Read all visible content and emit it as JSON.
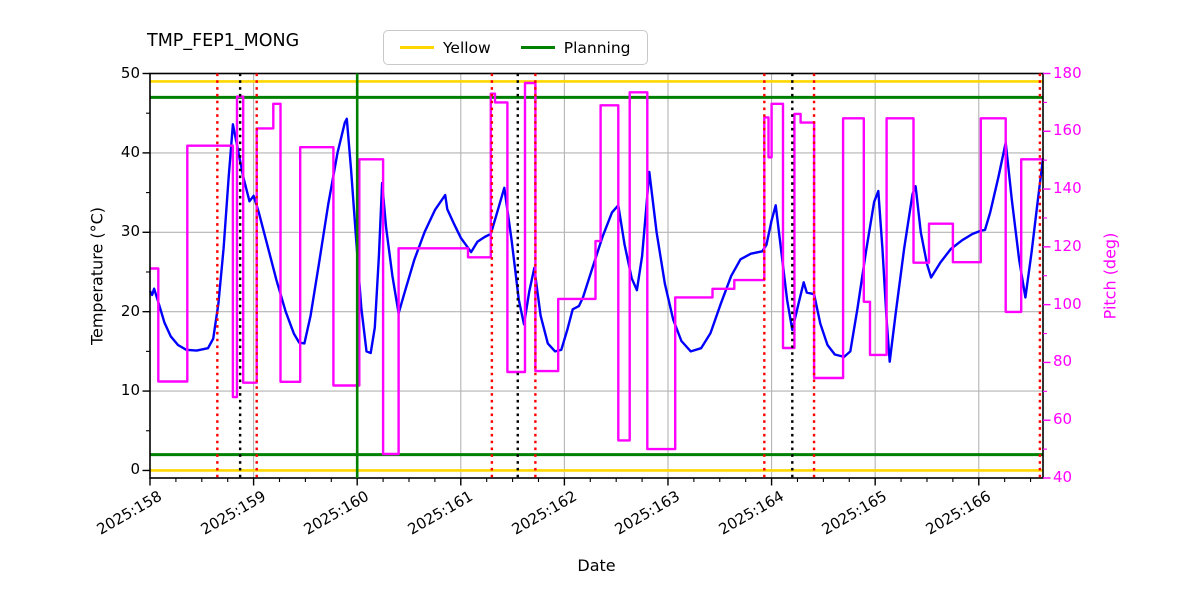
{
  "chart_data": {
    "type": "line",
    "title": "TMP_FEP1_MONG",
    "xlabel": "Date",
    "ylabel_left": "Temperature (°C)",
    "ylabel_right": "Pitch (deg)",
    "grid": true,
    "legend": [
      {
        "label": "Yellow",
        "color": "#FFD700"
      },
      {
        "label": "Planning",
        "color": "#008000"
      }
    ],
    "x_axis": {
      "tick_labels": [
        "2025:158",
        "2025:159",
        "2025:160",
        "2025:161",
        "2025:162",
        "2025:163",
        "2025:164",
        "2025:165",
        "2025:166"
      ],
      "tick_values": [
        158,
        159,
        160,
        161,
        162,
        163,
        164,
        165,
        166
      ],
      "range": [
        158.0,
        166.62
      ],
      "minor_step": 0.25
    },
    "y_left": {
      "tick_labels": [
        "0",
        "10",
        "20",
        "30",
        "40",
        "50"
      ],
      "tick_values": [
        0,
        10,
        20,
        30,
        40,
        50
      ],
      "range": [
        -0.95,
        50
      ],
      "minor_step": 5,
      "color": "#000000"
    },
    "y_right": {
      "tick_labels": [
        "40",
        "60",
        "80",
        "100",
        "120",
        "140",
        "160",
        "180"
      ],
      "tick_values": [
        40,
        60,
        80,
        100,
        120,
        140,
        160,
        180
      ],
      "range": [
        40,
        180
      ],
      "minor_step": 10,
      "color": "#FF00FF"
    },
    "limit_lines": [
      {
        "label": "Yellow",
        "axis": "left",
        "value": 49,
        "color": "#FFD700"
      },
      {
        "label": "Yellow",
        "axis": "left",
        "value": 0,
        "color": "#FFD700"
      },
      {
        "label": "Planning",
        "axis": "left",
        "value": 47,
        "color": "#008000"
      },
      {
        "label": "Planning",
        "axis": "left",
        "value": 2,
        "color": "#008000"
      }
    ],
    "vlines": [
      {
        "day": 160.0,
        "color": "#008000",
        "style": "solid"
      },
      {
        "day": 158.65,
        "color": "#FF0000",
        "style": "dotted"
      },
      {
        "day": 158.87,
        "color": "#000000",
        "style": "dotted"
      },
      {
        "day": 159.03,
        "color": "#FF0000",
        "style": "dotted"
      },
      {
        "day": 161.3,
        "color": "#FF0000",
        "style": "dotted"
      },
      {
        "day": 161.55,
        "color": "#000000",
        "style": "dotted"
      },
      {
        "day": 161.72,
        "color": "#FF0000",
        "style": "dotted"
      },
      {
        "day": 163.93,
        "color": "#FF0000",
        "style": "dotted"
      },
      {
        "day": 164.2,
        "color": "#000000",
        "style": "dotted"
      },
      {
        "day": 164.41,
        "color": "#FF0000",
        "style": "dotted"
      },
      {
        "day": 166.59,
        "color": "#FF0000",
        "style": "dotted"
      }
    ],
    "series": [
      {
        "name": "Temperature",
        "axis": "left",
        "color": "#0000FF",
        "points": [
          [
            158.0,
            22.6
          ],
          [
            158.02,
            22.1
          ],
          [
            158.04,
            22.9
          ],
          [
            158.09,
            20.8
          ],
          [
            158.14,
            18.6
          ],
          [
            158.2,
            16.9
          ],
          [
            158.27,
            15.8
          ],
          [
            158.35,
            15.2
          ],
          [
            158.45,
            15.1
          ],
          [
            158.56,
            15.4
          ],
          [
            158.61,
            16.6
          ],
          [
            158.66,
            21.0
          ],
          [
            158.71,
            28.0
          ],
          [
            158.76,
            37.0
          ],
          [
            158.8,
            43.6
          ],
          [
            158.84,
            41.0
          ],
          [
            158.9,
            37.0
          ],
          [
            158.96,
            33.9
          ],
          [
            159.0,
            34.6
          ],
          [
            159.05,
            32.5
          ],
          [
            159.13,
            28.5
          ],
          [
            159.22,
            24.0
          ],
          [
            159.31,
            20.0
          ],
          [
            159.39,
            17.2
          ],
          [
            159.44,
            16.1
          ],
          [
            159.49,
            16.0
          ],
          [
            159.55,
            19.5
          ],
          [
            159.63,
            26.0
          ],
          [
            159.72,
            33.5
          ],
          [
            159.81,
            40.0
          ],
          [
            159.88,
            43.8
          ],
          [
            159.9,
            44.3
          ],
          [
            159.94,
            38.0
          ],
          [
            159.99,
            29.0
          ],
          [
            160.04,
            20.5
          ],
          [
            160.09,
            15.0
          ],
          [
            160.13,
            14.8
          ],
          [
            160.17,
            18.0
          ],
          [
            160.21,
            27.0
          ],
          [
            160.24,
            36.2
          ],
          [
            160.28,
            30.5
          ],
          [
            160.34,
            24.5
          ],
          [
            160.4,
            19.8
          ],
          [
            160.46,
            22.5
          ],
          [
            160.55,
            26.5
          ],
          [
            160.65,
            30.0
          ],
          [
            160.75,
            32.8
          ],
          [
            160.85,
            34.7
          ],
          [
            160.87,
            32.9
          ],
          [
            160.93,
            31.2
          ],
          [
            161.0,
            29.3
          ],
          [
            161.1,
            27.5
          ],
          [
            161.16,
            28.8
          ],
          [
            161.23,
            29.4
          ],
          [
            161.29,
            29.8
          ],
          [
            161.34,
            32.0
          ],
          [
            161.42,
            35.6
          ],
          [
            161.49,
            29.0
          ],
          [
            161.56,
            21.5
          ],
          [
            161.61,
            18.4
          ],
          [
            161.66,
            22.5
          ],
          [
            161.71,
            25.5
          ],
          [
            161.77,
            19.5
          ],
          [
            161.84,
            16.0
          ],
          [
            161.91,
            15.0
          ],
          [
            161.97,
            15.2
          ],
          [
            162.03,
            17.8
          ],
          [
            162.08,
            20.3
          ],
          [
            162.14,
            20.7
          ],
          [
            162.18,
            21.8
          ],
          [
            162.27,
            25.5
          ],
          [
            162.37,
            29.5
          ],
          [
            162.46,
            32.5
          ],
          [
            162.52,
            33.4
          ],
          [
            162.58,
            28.5
          ],
          [
            162.65,
            24.2
          ],
          [
            162.7,
            22.7
          ],
          [
            162.75,
            27.0
          ],
          [
            162.79,
            33.0
          ],
          [
            162.82,
            37.6
          ],
          [
            162.89,
            30.0
          ],
          [
            162.97,
            23.5
          ],
          [
            163.05,
            19.0
          ],
          [
            163.13,
            16.3
          ],
          [
            163.22,
            15.0
          ],
          [
            163.32,
            15.4
          ],
          [
            163.41,
            17.3
          ],
          [
            163.51,
            21.0
          ],
          [
            163.61,
            24.5
          ],
          [
            163.7,
            26.6
          ],
          [
            163.8,
            27.3
          ],
          [
            163.91,
            27.6
          ],
          [
            163.95,
            28.4
          ],
          [
            164.0,
            31.5
          ],
          [
            164.04,
            33.4
          ],
          [
            164.09,
            28.0
          ],
          [
            164.15,
            21.5
          ],
          [
            164.2,
            17.7
          ],
          [
            164.26,
            21.0
          ],
          [
            164.31,
            23.7
          ],
          [
            164.34,
            22.4
          ],
          [
            164.41,
            22.2
          ],
          [
            164.47,
            18.5
          ],
          [
            164.54,
            15.8
          ],
          [
            164.61,
            14.6
          ],
          [
            164.7,
            14.3
          ],
          [
            164.76,
            15.0
          ],
          [
            164.83,
            20.5
          ],
          [
            164.91,
            27.5
          ],
          [
            164.99,
            33.8
          ],
          [
            165.03,
            35.2
          ],
          [
            165.07,
            28.0
          ],
          [
            165.11,
            19.0
          ],
          [
            165.14,
            13.7
          ],
          [
            165.2,
            20.0
          ],
          [
            165.28,
            28.0
          ],
          [
            165.36,
            34.8
          ],
          [
            165.39,
            35.8
          ],
          [
            165.44,
            30.0
          ],
          [
            165.5,
            26.0
          ],
          [
            165.54,
            24.3
          ],
          [
            165.63,
            26.2
          ],
          [
            165.73,
            27.9
          ],
          [
            165.84,
            29.0
          ],
          [
            165.94,
            29.8
          ],
          [
            166.02,
            30.2
          ],
          [
            166.06,
            30.3
          ],
          [
            166.11,
            32.5
          ],
          [
            166.19,
            37.0
          ],
          [
            166.26,
            41.3
          ],
          [
            166.32,
            34.0
          ],
          [
            166.39,
            26.5
          ],
          [
            166.45,
            21.8
          ],
          [
            166.51,
            27.5
          ],
          [
            166.57,
            34.0
          ],
          [
            166.62,
            39.3
          ]
        ]
      },
      {
        "name": "Pitch",
        "axis": "right",
        "color": "#FF00FF",
        "points": [
          [
            158.0,
            112.5
          ],
          [
            158.08,
            112.5
          ],
          [
            158.08,
            73.4
          ],
          [
            158.36,
            73.4
          ],
          [
            158.36,
            155
          ],
          [
            158.8,
            155
          ],
          [
            158.8,
            68
          ],
          [
            158.84,
            68
          ],
          [
            158.84,
            172
          ],
          [
            158.9,
            172
          ],
          [
            158.9,
            73
          ],
          [
            159.03,
            73
          ],
          [
            159.03,
            161
          ],
          [
            159.19,
            161
          ],
          [
            159.19,
            169.5
          ],
          [
            159.26,
            169.5
          ],
          [
            159.26,
            73.3
          ],
          [
            159.45,
            73.3
          ],
          [
            159.45,
            154.5
          ],
          [
            159.77,
            154.5
          ],
          [
            159.77,
            72
          ],
          [
            160.02,
            72
          ],
          [
            160.02,
            150.3
          ],
          [
            160.25,
            150.3
          ],
          [
            160.25,
            48.3
          ],
          [
            160.4,
            48.3
          ],
          [
            160.4,
            119.5
          ],
          [
            161.07,
            119.5
          ],
          [
            161.07,
            116.4
          ],
          [
            161.29,
            116.4
          ],
          [
            161.29,
            173
          ],
          [
            161.33,
            173
          ],
          [
            161.33,
            170
          ],
          [
            161.45,
            170
          ],
          [
            161.45,
            76.7
          ],
          [
            161.62,
            76.7
          ],
          [
            161.62,
            176.7
          ],
          [
            161.72,
            176.7
          ],
          [
            161.72,
            77
          ],
          [
            161.94,
            77
          ],
          [
            161.94,
            102
          ],
          [
            162.3,
            102
          ],
          [
            162.3,
            122
          ],
          [
            162.35,
            122
          ],
          [
            162.35,
            169
          ],
          [
            162.52,
            169
          ],
          [
            162.52,
            53
          ],
          [
            162.63,
            53
          ],
          [
            162.63,
            173.5
          ],
          [
            162.8,
            173.5
          ],
          [
            162.8,
            50
          ],
          [
            163.07,
            50
          ],
          [
            163.07,
            102.5
          ],
          [
            163.43,
            102.5
          ],
          [
            163.43,
            105.5
          ],
          [
            163.64,
            105.5
          ],
          [
            163.64,
            108.5
          ],
          [
            163.93,
            108.5
          ],
          [
            163.93,
            164.8
          ],
          [
            163.97,
            164.8
          ],
          [
            163.97,
            151
          ],
          [
            164.0,
            151
          ],
          [
            164.0,
            169.5
          ],
          [
            164.11,
            169.5
          ],
          [
            164.11,
            85
          ],
          [
            164.22,
            85
          ],
          [
            164.22,
            166
          ],
          [
            164.28,
            166
          ],
          [
            164.28,
            163
          ],
          [
            164.41,
            163
          ],
          [
            164.41,
            74.6
          ],
          [
            164.69,
            74.6
          ],
          [
            164.69,
            164.5
          ],
          [
            164.89,
            164.5
          ],
          [
            164.89,
            101
          ],
          [
            164.95,
            101
          ],
          [
            164.95,
            82.6
          ],
          [
            165.11,
            82.6
          ],
          [
            165.11,
            164.5
          ],
          [
            165.37,
            164.5
          ],
          [
            165.37,
            114.5
          ],
          [
            165.52,
            114.5
          ],
          [
            165.52,
            128
          ],
          [
            165.75,
            128
          ],
          [
            165.75,
            114.7
          ],
          [
            166.02,
            114.7
          ],
          [
            166.02,
            164.5
          ],
          [
            166.26,
            164.5
          ],
          [
            166.26,
            97.5
          ],
          [
            166.41,
            97.5
          ],
          [
            166.41,
            150.3
          ],
          [
            166.62,
            150.3
          ]
        ]
      }
    ]
  }
}
